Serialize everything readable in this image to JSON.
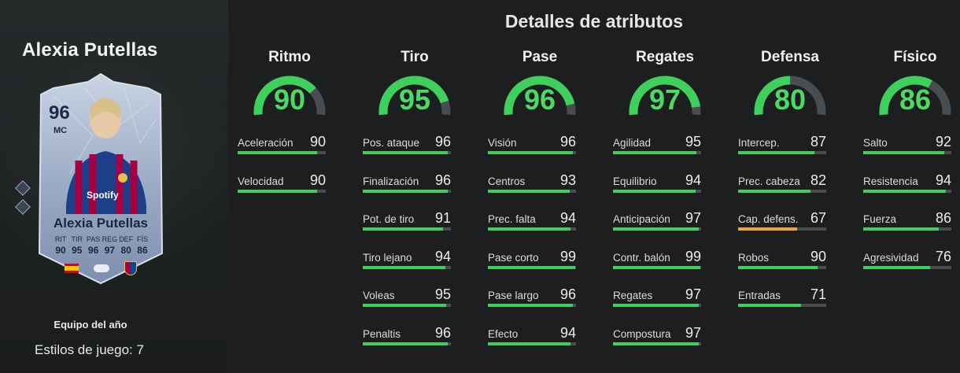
{
  "player": {
    "name": "Alexia Putellas",
    "card": {
      "rating": "96",
      "position": "MC",
      "name": "Alexia Putellas",
      "stats": [
        {
          "label": "RIT",
          "value": "90"
        },
        {
          "label": "TIR",
          "value": "95"
        },
        {
          "label": "PAS",
          "value": "96"
        },
        {
          "label": "REG",
          "value": "97"
        },
        {
          "label": "DEF",
          "value": "80"
        },
        {
          "label": "FÍS",
          "value": "86"
        }
      ],
      "nation_icon": "spain-flag-icon",
      "league_icon": "liga-f-icon",
      "club_icon": "fc-barcelona-crest-icon"
    },
    "team_label": "Equipo del año",
    "playstyles_label": "Estilos de juego: 7"
  },
  "title": "Detalles de atributos",
  "colors": {
    "high": "#3ecf5c",
    "mid": "#f0a53a",
    "track": "#4a4d4f"
  },
  "categories": [
    {
      "name": "Ritmo",
      "value": "90",
      "attrs": [
        {
          "name": "Aceleración",
          "value": "90"
        },
        {
          "name": "Velocidad",
          "value": "90"
        }
      ]
    },
    {
      "name": "Tiro",
      "value": "95",
      "attrs": [
        {
          "name": "Pos. ataque",
          "value": "96"
        },
        {
          "name": "Finalización",
          "value": "96"
        },
        {
          "name": "Pot. de tiro",
          "value": "91"
        },
        {
          "name": "Tiro lejano",
          "value": "94"
        },
        {
          "name": "Voleas",
          "value": "95"
        },
        {
          "name": "Penaltis",
          "value": "96"
        }
      ]
    },
    {
      "name": "Pase",
      "value": "96",
      "attrs": [
        {
          "name": "Visión",
          "value": "96"
        },
        {
          "name": "Centros",
          "value": "93"
        },
        {
          "name": "Prec. falta",
          "value": "94"
        },
        {
          "name": "Pase corto",
          "value": "99"
        },
        {
          "name": "Pase largo",
          "value": "96"
        },
        {
          "name": "Efecto",
          "value": "94"
        }
      ]
    },
    {
      "name": "Regates",
      "value": "97",
      "attrs": [
        {
          "name": "Agilidad",
          "value": "95"
        },
        {
          "name": "Equilibrio",
          "value": "94"
        },
        {
          "name": "Anticipación",
          "value": "97"
        },
        {
          "name": "Contr. balón",
          "value": "99"
        },
        {
          "name": "Regates",
          "value": "97"
        },
        {
          "name": "Compostura",
          "value": "97"
        }
      ]
    },
    {
      "name": "Defensa",
      "value": "80",
      "attrs": [
        {
          "name": "Intercep.",
          "value": "87"
        },
        {
          "name": "Prec. cabeza",
          "value": "82"
        },
        {
          "name": "Cap. defens.",
          "value": "67"
        },
        {
          "name": "Robos",
          "value": "90"
        },
        {
          "name": "Entradas",
          "value": "71"
        }
      ]
    },
    {
      "name": "Físico",
      "value": "86",
      "attrs": [
        {
          "name": "Salto",
          "value": "92"
        },
        {
          "name": "Resistencia",
          "value": "94"
        },
        {
          "name": "Fuerza",
          "value": "86"
        },
        {
          "name": "Agresividad",
          "value": "76"
        }
      ]
    }
  ]
}
